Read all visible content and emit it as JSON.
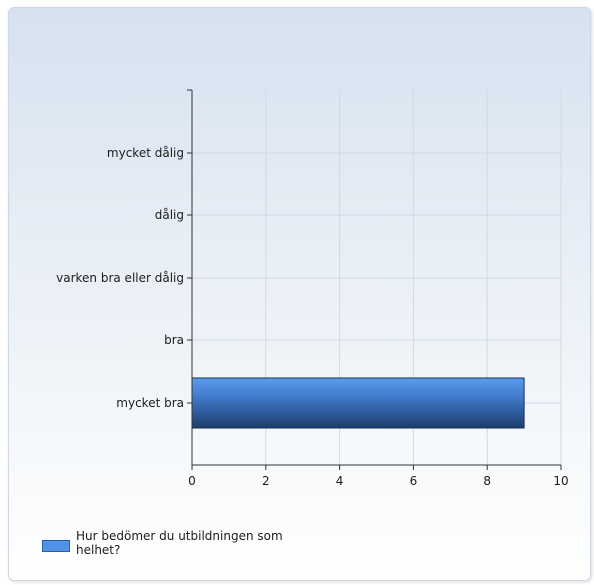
{
  "chart_data": {
    "type": "bar",
    "orientation": "horizontal",
    "categories": [
      "mycket dålig",
      "dålig",
      "varken bra eller dålig",
      "bra",
      "mycket bra"
    ],
    "series": [
      {
        "name": "Hur bedömer du utbildningen som helhet?",
        "values": [
          0,
          0,
          0,
          0,
          9
        ],
        "color": "#4f92e8"
      }
    ],
    "xlim": [
      0,
      10
    ],
    "xticks": [
      0,
      2,
      4,
      6,
      8,
      10
    ],
    "grid": true,
    "legend_position": "bottom-left"
  },
  "legend": {
    "label": "Hur bedömer du utbildningen som helhet?"
  }
}
